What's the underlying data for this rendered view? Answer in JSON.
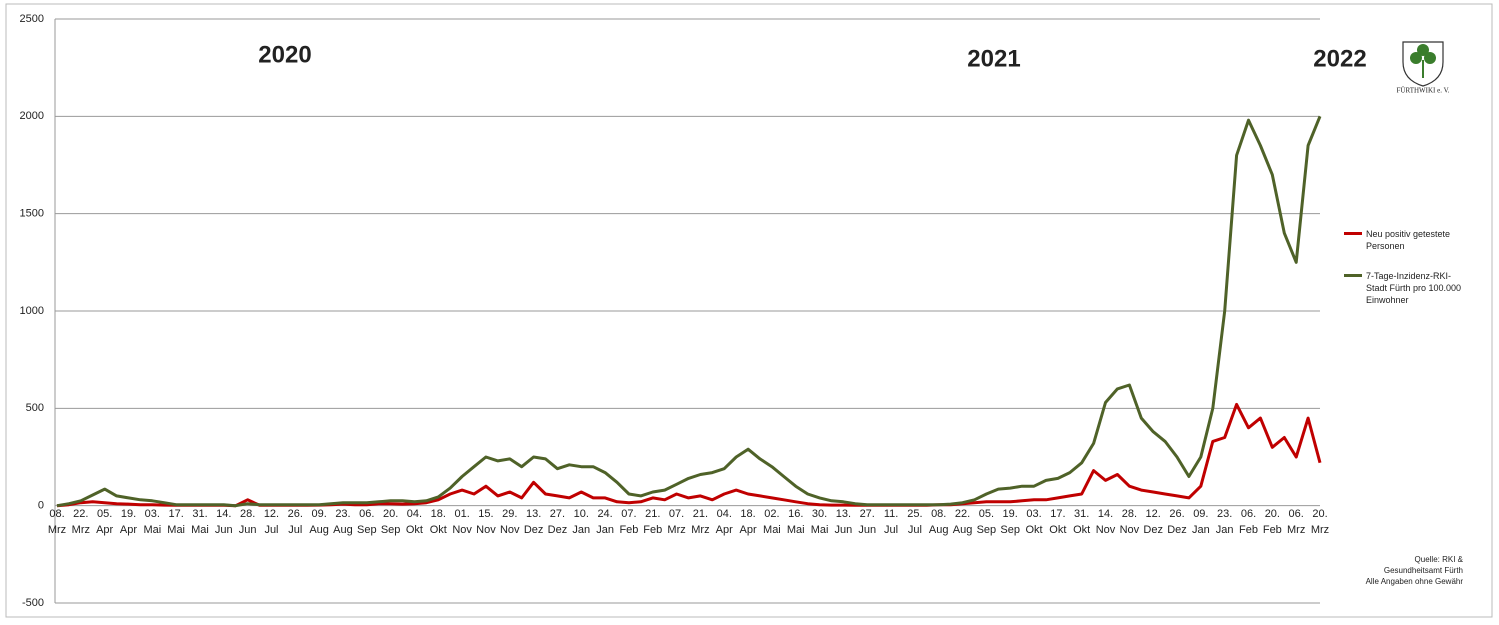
{
  "chart_data": {
    "type": "line",
    "annotations": [
      "2020",
      "2021",
      "2022"
    ],
    "logo_text": "FÜRTHWIKI e. V.",
    "source_note": [
      "Quelle: RKI &",
      "Gesundheitsamt Fürth",
      "Alle Angaben ohne Gewähr"
    ],
    "categories": [
      [
        "08.",
        "Mrz"
      ],
      null,
      [
        "22.",
        "Mrz"
      ],
      null,
      [
        "05.",
        "Apr"
      ],
      null,
      [
        "19.",
        "Apr"
      ],
      null,
      [
        "03.",
        "Mai"
      ],
      null,
      [
        "17.",
        "Mai"
      ],
      null,
      [
        "31.",
        "Mai"
      ],
      null,
      [
        "14.",
        "Jun"
      ],
      null,
      [
        "28.",
        "Jun"
      ],
      null,
      [
        "12.",
        "Jul"
      ],
      null,
      [
        "26.",
        "Jul"
      ],
      null,
      [
        "09.",
        "Aug"
      ],
      null,
      [
        "23.",
        "Aug"
      ],
      null,
      [
        "06.",
        "Sep"
      ],
      null,
      [
        "20.",
        "Sep"
      ],
      null,
      [
        "04.",
        "Okt"
      ],
      null,
      [
        "18.",
        "Okt"
      ],
      null,
      [
        "01.",
        "Nov"
      ],
      null,
      [
        "15.",
        "Nov"
      ],
      null,
      [
        "29.",
        "Nov"
      ],
      null,
      [
        "13.",
        "Dez"
      ],
      null,
      [
        "27.",
        "Dez"
      ],
      null,
      [
        "10.",
        "Jan"
      ],
      null,
      [
        "24.",
        "Jan"
      ],
      null,
      [
        "07.",
        "Feb"
      ],
      null,
      [
        "21.",
        "Feb"
      ],
      null,
      [
        "07.",
        "Mrz"
      ],
      null,
      [
        "21.",
        "Mrz"
      ],
      null,
      [
        "04.",
        "Apr"
      ],
      null,
      [
        "18.",
        "Apr"
      ],
      null,
      [
        "02.",
        "Mai"
      ],
      null,
      [
        "16.",
        "Mai"
      ],
      null,
      [
        "30.",
        "Mai"
      ],
      null,
      [
        "13.",
        "Jun"
      ],
      null,
      [
        "27.",
        "Jun"
      ],
      null,
      [
        "11.",
        "Jul"
      ],
      null,
      [
        "25.",
        "Jul"
      ],
      null,
      [
        "08.",
        "Aug"
      ],
      null,
      [
        "22.",
        "Aug"
      ],
      null,
      [
        "05.",
        "Sep"
      ],
      null,
      [
        "19.",
        "Sep"
      ],
      null,
      [
        "03.",
        "Okt"
      ],
      null,
      [
        "17.",
        "Okt"
      ],
      null,
      [
        "31.",
        "Okt"
      ],
      null,
      [
        "14.",
        "Nov"
      ],
      null,
      [
        "28.",
        "Nov"
      ],
      null,
      [
        "12.",
        "Dez"
      ],
      null,
      [
        "26.",
        "Dez"
      ],
      null,
      [
        "09.",
        "Jan"
      ],
      null,
      [
        "23.",
        "Jan"
      ],
      null,
      [
        "06.",
        "Feb"
      ],
      null,
      [
        "20.",
        "Feb"
      ],
      null,
      [
        "06.",
        "Mrz"
      ],
      null,
      [
        "20.",
        "Mrz"
      ]
    ],
    "series": [
      {
        "name": "Neu positiv getestete Personen",
        "color": "#c00000",
        "values": [
          0,
          5,
          15,
          20,
          15,
          10,
          8,
          5,
          5,
          3,
          2,
          2,
          2,
          2,
          2,
          0,
          30,
          2,
          2,
          2,
          2,
          2,
          3,
          5,
          8,
          5,
          5,
          10,
          10,
          8,
          10,
          15,
          30,
          60,
          80,
          60,
          100,
          50,
          70,
          40,
          120,
          60,
          50,
          40,
          70,
          40,
          40,
          20,
          15,
          20,
          40,
          30,
          60,
          40,
          50,
          30,
          60,
          80,
          60,
          50,
          40,
          30,
          20,
          10,
          5,
          3,
          3,
          2,
          2,
          2,
          2,
          2,
          2,
          2,
          5,
          5,
          10,
          15,
          20,
          20,
          20,
          25,
          30,
          30,
          40,
          50,
          60,
          180,
          130,
          160,
          100,
          80,
          70,
          60,
          50,
          40,
          100,
          330,
          350,
          520,
          400,
          450,
          300,
          350,
          250,
          450,
          220
        ]
      },
      {
        "name": "7-Tage-Inzidenz-RKI-Stadt Fürth pro 100.000 Einwohner",
        "color": "#4f6228",
        "values": [
          0,
          10,
          25,
          55,
          85,
          50,
          40,
          30,
          25,
          15,
          5,
          5,
          5,
          5,
          5,
          0,
          10,
          5,
          5,
          5,
          5,
          5,
          5,
          10,
          15,
          15,
          15,
          20,
          25,
          25,
          20,
          25,
          45,
          90,
          150,
          200,
          250,
          230,
          240,
          200,
          250,
          240,
          190,
          210,
          200,
          200,
          170,
          120,
          60,
          50,
          70,
          80,
          110,
          140,
          160,
          170,
          190,
          250,
          290,
          240,
          200,
          150,
          100,
          60,
          40,
          25,
          20,
          10,
          5,
          5,
          5,
          5,
          5,
          5,
          5,
          8,
          15,
          30,
          60,
          85,
          90,
          100,
          100,
          130,
          140,
          170,
          220,
          320,
          530,
          600,
          620,
          450,
          380,
          330,
          250,
          150,
          250,
          500,
          1000,
          1800,
          1980,
          1850,
          1700,
          1400,
          1250,
          1850,
          2000
        ]
      }
    ],
    "ylim": [
      -500,
      2500
    ],
    "yticks": [
      -500,
      0,
      500,
      1000,
      1500,
      2000,
      2500
    ],
    "grid": true
  }
}
